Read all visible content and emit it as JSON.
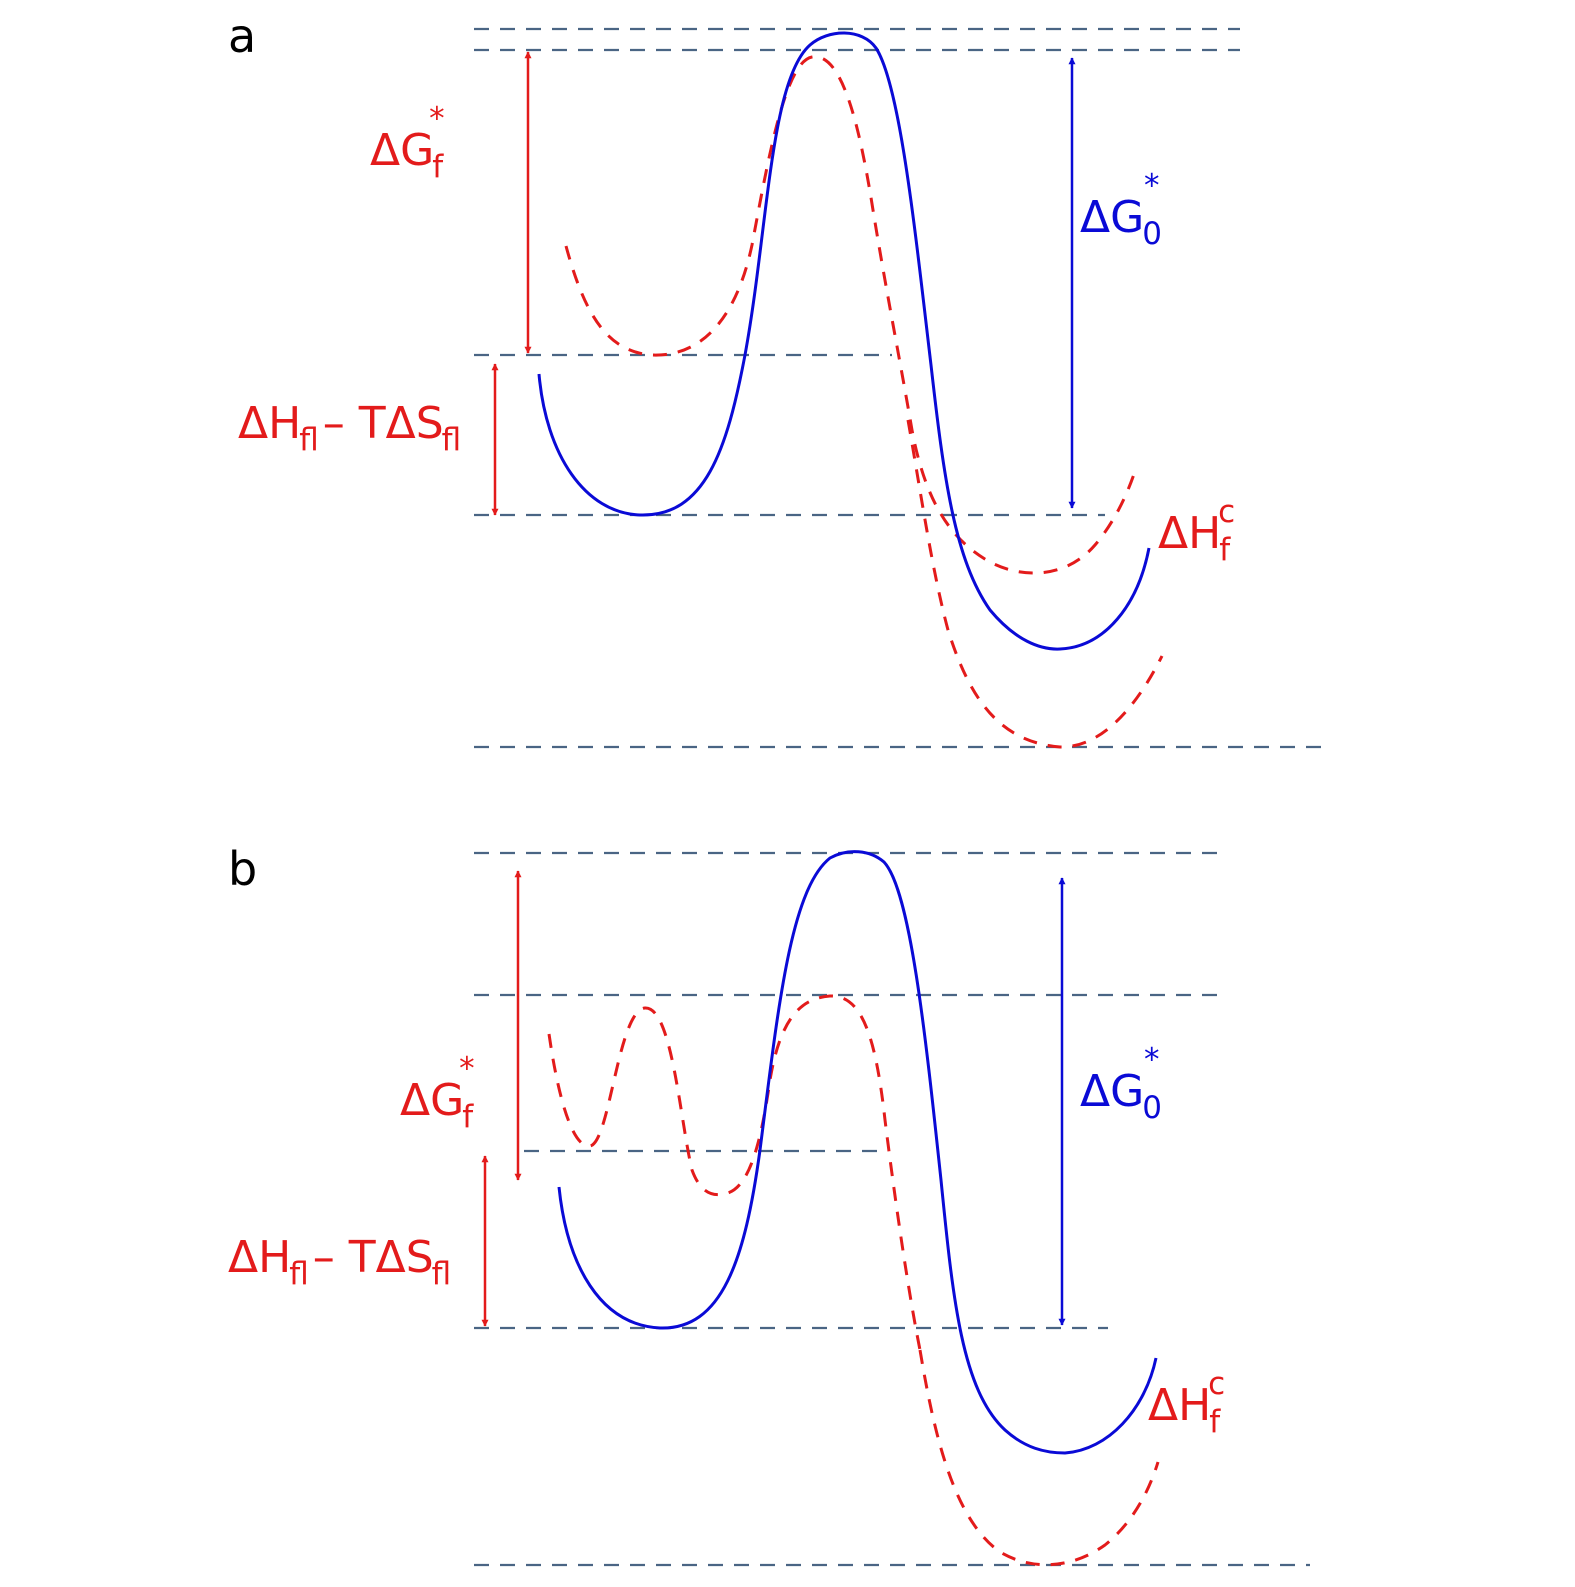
{
  "colors": {
    "solid_curve": "#0a0ad6",
    "dashed_curve": "#e31b1b",
    "reference_line": "#4a6584",
    "panel_letter": "#000000"
  },
  "panels": [
    {
      "letter": "a",
      "labels": {
        "dG_f": {
          "main": "ΔG",
          "sub": "f",
          "sup": "*"
        },
        "dH_TdS": {
          "part1": "ΔH",
          "sub1": "f",
          "sup1": "l",
          "minus": " – ",
          "part2": "TΔS",
          "sub2": "f",
          "sup2": "l"
        },
        "dG_0": {
          "main": "ΔG",
          "sub": "0",
          "sup": "*"
        },
        "dH_c": {
          "main": "ΔH",
          "sub": "f",
          "sup": "c"
        }
      }
    },
    {
      "letter": "b",
      "labels": {
        "dG_f": {
          "main": "ΔG",
          "sub": "f",
          "sup": "*"
        },
        "dH_TdS": {
          "part1": "ΔH",
          "sub1": "f",
          "sup1": "l",
          "minus": " – ",
          "part2": "TΔS",
          "sub2": "f",
          "sup2": "l"
        },
        "dG_0": {
          "main": "ΔG",
          "sub": "0",
          "sup": "*"
        },
        "dH_c": {
          "main": "ΔH",
          "sub": "f",
          "sup": "c"
        }
      }
    }
  ]
}
